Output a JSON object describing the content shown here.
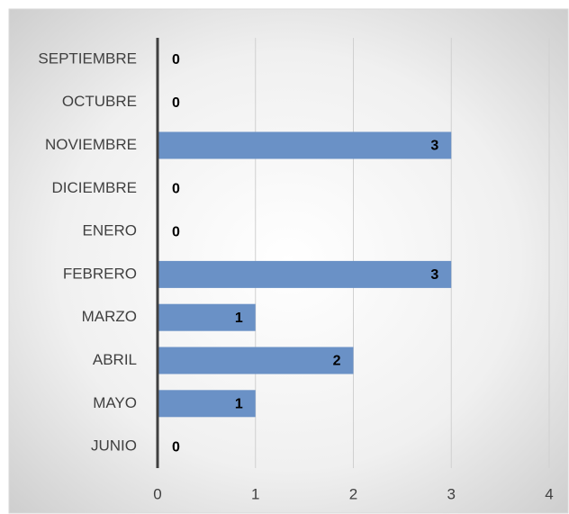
{
  "chart_data": {
    "type": "hbar",
    "categories": [
      "SEPTIEMBRE",
      "OCTUBRE",
      "NOVIEMBRE",
      "DICIEMBRE",
      "ENERO",
      "FEBRERO",
      "MARZO",
      "ABRIL",
      "MAYO",
      "JUNIO"
    ],
    "values": [
      0,
      0,
      3,
      0,
      0,
      3,
      1,
      2,
      1,
      0
    ],
    "color": "#6a91c6",
    "xlim": [
      0,
      4
    ],
    "xticks": [
      0,
      1,
      2,
      3,
      4
    ],
    "grid": true
  }
}
